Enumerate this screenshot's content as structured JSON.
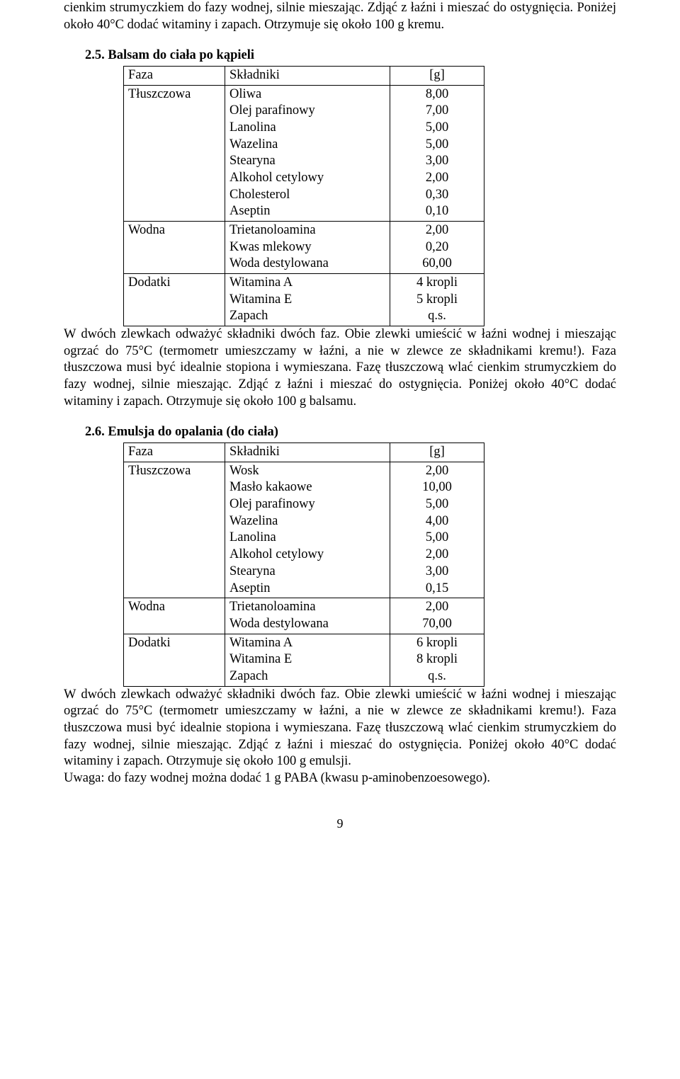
{
  "intro_para": "cienkim strumyczkiem do fazy wodnej, silnie mieszając. Zdjąć z łaźni i mieszać do ostygnięcia. Poniżej około 40°C dodać witaminy i zapach. Otrzymuje się około 100 g kremu.",
  "section25": {
    "heading": "2.5. Balsam do ciała po kąpieli",
    "header": {
      "faza": "Faza",
      "skladniki": "Składniki",
      "g": "[g]"
    },
    "rows": [
      {
        "phase": "Tłuszczowa",
        "items": "Oliwa\nOlej parafinowy\nLanolina\nWazelina\nStearyna\nAlkohol cetylowy\nCholesterol\nAseptin",
        "vals": "8,00\n7,00\n5,00\n5,00\n3,00\n2,00\n0,30\n0,10"
      },
      {
        "phase": "Wodna",
        "items": "Trietanoloamina\nKwas mlekowy\nWoda destylowana",
        "vals": "2,00\n0,20\n60,00"
      },
      {
        "phase": "Dodatki",
        "items": "Witamina A\nWitamina E\nZapach",
        "vals": "4 kropli\n5 kropli\nq.s."
      }
    ],
    "para": "W dwóch zlewkach odważyć składniki dwóch faz. Obie zlewki umieścić w łaźni wodnej i mieszając ogrzać do 75°C (termometr umieszczamy w łaźni, a nie w zlewce ze składnikami kremu!). Faza tłuszczowa musi być idealnie stopiona i wymieszana. Fazę tłuszczową wlać cienkim strumyczkiem do fazy wodnej, silnie mieszając. Zdjąć z łaźni i mieszać do ostygnięcia. Poniżej około 40°C dodać witaminy i zapach. Otrzymuje się około 100 g balsamu."
  },
  "section26": {
    "heading": "2.6. Emulsja do opalania (do ciała)",
    "header": {
      "faza": "Faza",
      "skladniki": "Składniki",
      "g": "[g]"
    },
    "rows": [
      {
        "phase": "Tłuszczowa",
        "items": "Wosk\nMasło kakaowe\nOlej parafinowy\nWazelina\nLanolina\nAlkohol cetylowy\nStearyna\nAseptin",
        "vals": "2,00\n10,00\n5,00\n4,00\n5,00\n2,00\n3,00\n0,15"
      },
      {
        "phase": "Wodna",
        "items": "Trietanoloamina\nWoda destylowana",
        "vals": "2,00\n70,00"
      },
      {
        "phase": "Dodatki",
        "items": "Witamina A\nWitamina E\nZapach",
        "vals": "6 kropli\n8 kropli\nq.s."
      }
    ],
    "para": "W dwóch zlewkach odważyć składniki dwóch faz. Obie zlewki umieścić w łaźni wodnej i mieszając ogrzać do 75°C (termometr umieszczamy w łaźni, a nie w zlewce ze składnikami kremu!). Faza tłuszczowa musi być idealnie stopiona i wymieszana. Fazę tłuszczową wlać cienkim strumyczkiem do fazy wodnej, silnie mieszając. Zdjąć z łaźni i mieszać do ostygnięcia. Poniżej około 40°C dodać witaminy i zapach. Otrzymuje się około 100 g emulsji.",
    "note": "Uwaga: do fazy wodnej można dodać 1 g PABA (kwasu p-aminobenzoesowego)."
  },
  "page_number": "9"
}
